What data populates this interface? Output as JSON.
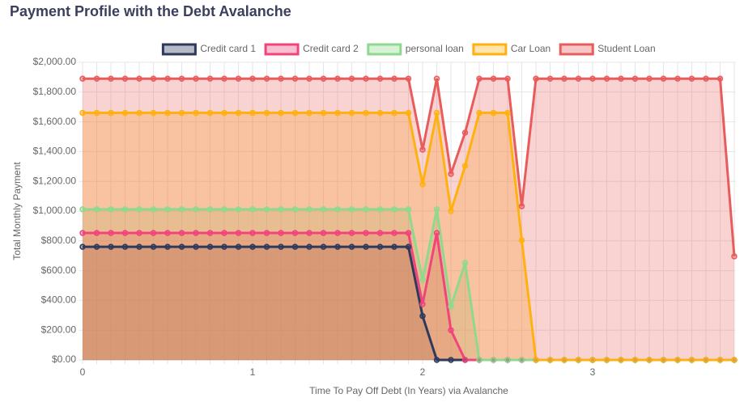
{
  "chart_data": {
    "type": "stacked-area",
    "title": "Payment Profile with the Debt Avalanche",
    "x_label": "Time To Pay Off Debt (In Years) via Avalanche",
    "y_label": "Total Monthly Payment",
    "categories": [
      "0",
      null,
      null,
      null,
      null,
      null,
      null,
      null,
      null,
      null,
      null,
      null,
      "1",
      null,
      null,
      null,
      null,
      null,
      null,
      null,
      null,
      null,
      null,
      null,
      "2",
      null,
      null,
      null,
      null,
      null,
      null,
      null,
      null,
      null,
      null,
      null,
      "3",
      null,
      null,
      null,
      null,
      null,
      null,
      null,
      null,
      null,
      null
    ],
    "ylim": [
      0,
      2000
    ],
    "yticks": [
      {
        "value": 0,
        "label": "$0.00"
      },
      {
        "value": 200,
        "label": "$200.00"
      },
      {
        "value": 400,
        "label": "$400.00"
      },
      {
        "value": 600,
        "label": "$600.00"
      },
      {
        "value": 800,
        "label": "$800.00"
      },
      {
        "value": 1000,
        "label": "$1,000.00"
      },
      {
        "value": 1200,
        "label": "$1,200.00"
      },
      {
        "value": 1400,
        "label": "$1,400.00"
      },
      {
        "value": 1600,
        "label": "$1,600.00"
      },
      {
        "value": 1800,
        "label": "$1,800.00"
      },
      {
        "value": 2000,
        "label": "$2,000.00"
      }
    ],
    "grid": true,
    "series": [
      {
        "name": "Credit card 1",
        "color": "#2e3a5c",
        "values": [
          760,
          760,
          760,
          760,
          760,
          760,
          760,
          760,
          760,
          760,
          760,
          760,
          760,
          760,
          760,
          760,
          760,
          760,
          760,
          760,
          760,
          760,
          760,
          760,
          295,
          0,
          0,
          0,
          0,
          0,
          0,
          0,
          0,
          0,
          0,
          0,
          0,
          0,
          0,
          0,
          0,
          0,
          0,
          0,
          0,
          0,
          0
        ]
      },
      {
        "name": "Credit card 2",
        "color": "#f0457a",
        "values": [
          93,
          93,
          93,
          93,
          93,
          93,
          93,
          93,
          93,
          93,
          93,
          93,
          93,
          93,
          93,
          93,
          93,
          93,
          93,
          93,
          93,
          93,
          93,
          93,
          80,
          853,
          200,
          0,
          0,
          0,
          0,
          0,
          0,
          0,
          0,
          0,
          0,
          0,
          0,
          0,
          0,
          0,
          0,
          0,
          0,
          0,
          0
        ]
      },
      {
        "name": "personal loan",
        "color": "#8fd98f",
        "values": [
          159,
          159,
          159,
          159,
          159,
          159,
          159,
          159,
          159,
          159,
          159,
          159,
          159,
          159,
          159,
          159,
          159,
          159,
          159,
          159,
          159,
          159,
          159,
          159,
          163,
          159,
          159,
          652,
          0,
          0,
          0,
          0,
          0,
          0,
          0,
          0,
          0,
          0,
          0,
          0,
          0,
          0,
          0,
          0,
          0,
          0,
          0
        ]
      },
      {
        "name": "Car Loan",
        "color": "#ffb20f",
        "values": [
          648,
          648,
          648,
          648,
          648,
          648,
          648,
          648,
          648,
          648,
          648,
          648,
          648,
          648,
          648,
          648,
          648,
          648,
          648,
          648,
          648,
          648,
          648,
          648,
          642,
          648,
          641,
          652,
          1660,
          1660,
          1660,
          804,
          0,
          0,
          0,
          0,
          0,
          0,
          0,
          0,
          0,
          0,
          0,
          0,
          0,
          0,
          0
        ]
      },
      {
        "name": "Student Loan",
        "color": "#e85c5c",
        "values": [
          230,
          230,
          230,
          230,
          230,
          230,
          230,
          230,
          230,
          230,
          230,
          230,
          230,
          230,
          230,
          230,
          230,
          230,
          230,
          230,
          230,
          230,
          230,
          230,
          233,
          230,
          250,
          223,
          230,
          230,
          230,
          229,
          1890,
          1890,
          1890,
          1890,
          1890,
          1890,
          1890,
          1890,
          1890,
          1890,
          1890,
          1890,
          1890,
          1890,
          696
        ]
      }
    ]
  }
}
